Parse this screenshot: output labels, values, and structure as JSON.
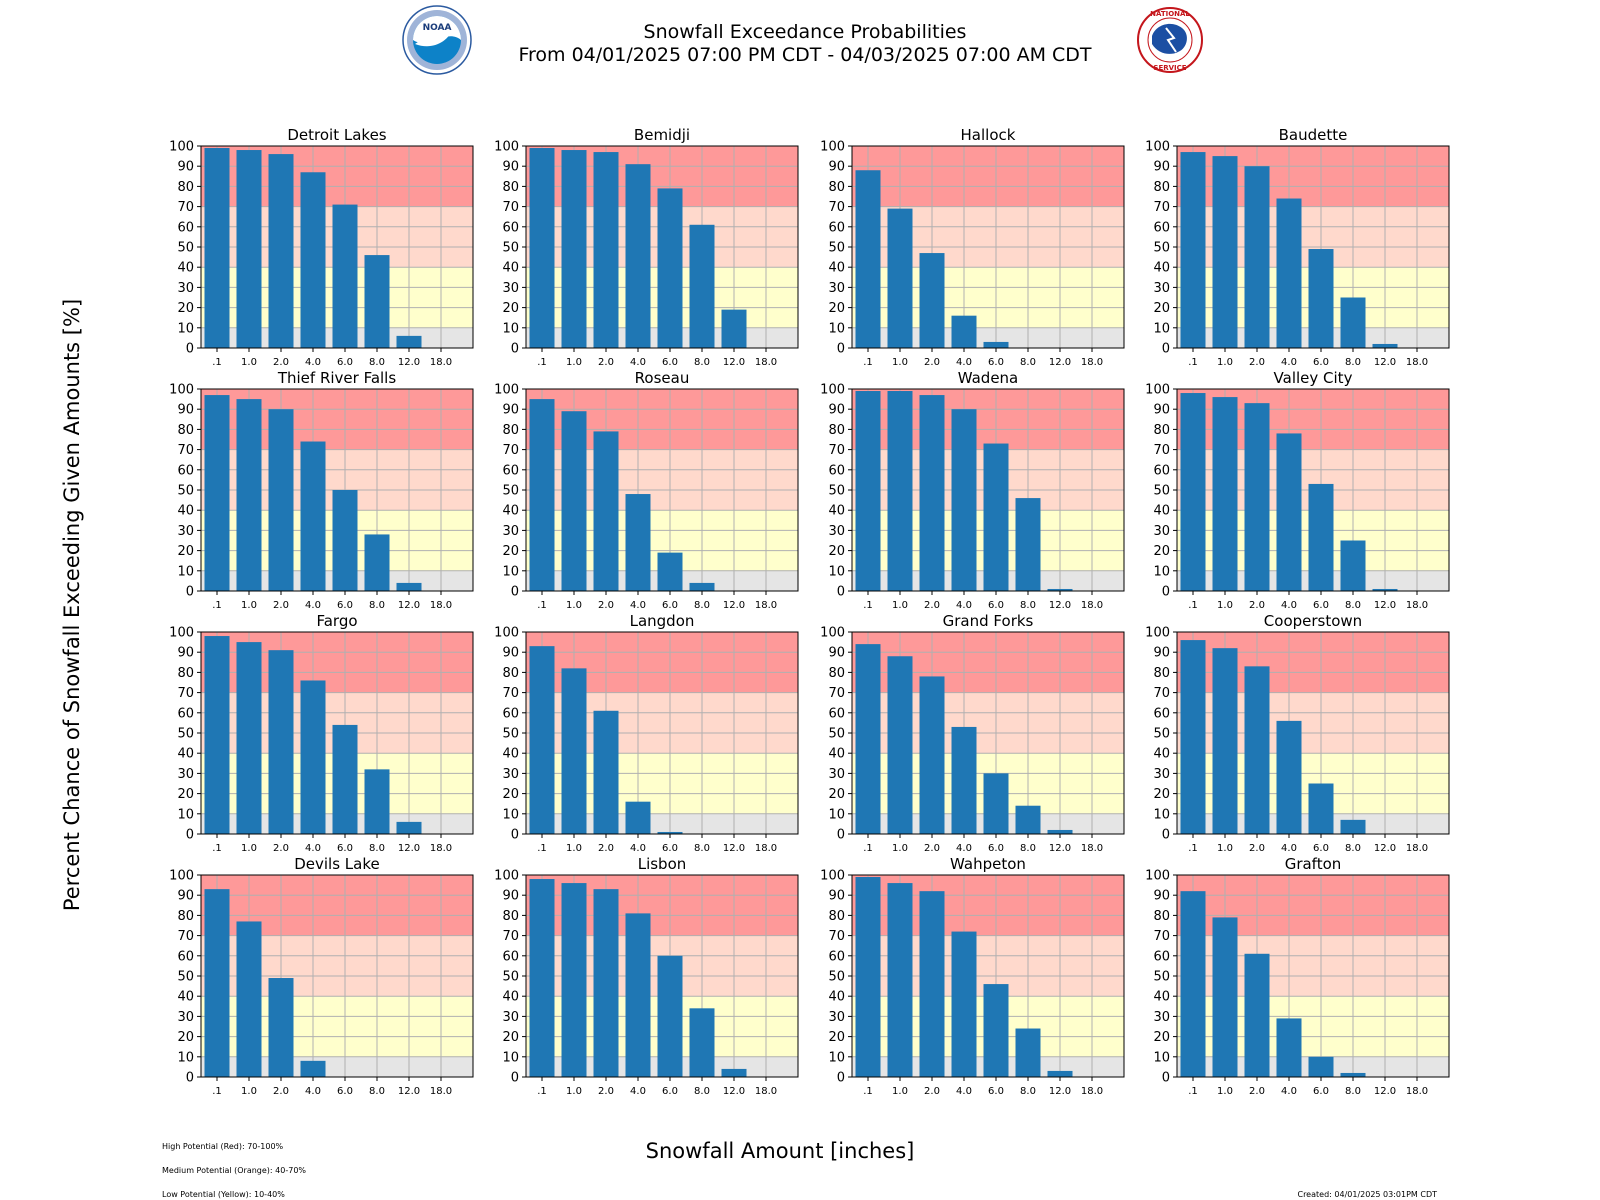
{
  "header": {
    "title_line1": "Snowfall Exceedance Probabilities",
    "title_line2": "From 04/01/2025 07:00 PM CDT - 04/03/2025 07:00 AM CDT",
    "left_logo": "noaa-logo",
    "right_logo": "national-weather-service-logo"
  },
  "footer": {
    "legend_lines": [
      "High Potential (Red): 70-100%",
      "Medium Potential (Orange): 40-70%",
      "Low Potential (Yellow): 10-40%"
    ],
    "created": "Created: 04/01/2025 03:01PM CDT"
  },
  "colors": {
    "bar": "#1f77b4",
    "high_band": "#fe9999",
    "medium_band": "#ffd9cc",
    "low_band": "#ffffcc",
    "minimal_band": "#e5e5e5",
    "grid": "#b0b0b0"
  },
  "chart_data": {
    "type": "bar",
    "xlabel": "Snowfall Amount [inches]",
    "ylabel": "Percent Chance of Snowfall Exceeding Given Amounts [%]",
    "categories": [
      ".1",
      "1.0",
      "2.0",
      "4.0",
      "6.0",
      "8.0",
      "12.0",
      "18.0"
    ],
    "ylim": [
      0,
      100
    ],
    "yticks": [
      0,
      10,
      20,
      30,
      40,
      50,
      60,
      70,
      80,
      90,
      100
    ],
    "grid": true,
    "bands": [
      {
        "from": 70,
        "to": 100,
        "color": "#fe9999"
      },
      {
        "from": 40,
        "to": 70,
        "color": "#ffd9cc"
      },
      {
        "from": 10,
        "to": 40,
        "color": "#ffffcc"
      },
      {
        "from": 0,
        "to": 10,
        "color": "#e5e5e5"
      }
    ],
    "panels": [
      {
        "title": "Detroit Lakes",
        "values": [
          99,
          98,
          96,
          87,
          71,
          46,
          6,
          0
        ]
      },
      {
        "title": "Bemidji",
        "values": [
          99,
          98,
          97,
          91,
          79,
          61,
          19,
          0
        ]
      },
      {
        "title": "Hallock",
        "values": [
          88,
          69,
          47,
          16,
          3,
          0,
          0,
          0
        ]
      },
      {
        "title": "Baudette",
        "values": [
          97,
          95,
          90,
          74,
          49,
          25,
          2,
          0
        ]
      },
      {
        "title": "Thief River Falls",
        "values": [
          97,
          95,
          90,
          74,
          50,
          28,
          4,
          0
        ]
      },
      {
        "title": "Roseau",
        "values": [
          95,
          89,
          79,
          48,
          19,
          4,
          0,
          0
        ]
      },
      {
        "title": "Wadena",
        "values": [
          99,
          99,
          97,
          90,
          73,
          46,
          1,
          0
        ]
      },
      {
        "title": "Valley City",
        "values": [
          98,
          96,
          93,
          78,
          53,
          25,
          1,
          0
        ]
      },
      {
        "title": "Fargo",
        "values": [
          98,
          95,
          91,
          76,
          54,
          32,
          6,
          0
        ]
      },
      {
        "title": "Langdon",
        "values": [
          93,
          82,
          61,
          16,
          1,
          0,
          0,
          0
        ]
      },
      {
        "title": "Grand Forks",
        "values": [
          94,
          88,
          78,
          53,
          30,
          14,
          2,
          0
        ]
      },
      {
        "title": "Cooperstown",
        "values": [
          96,
          92,
          83,
          56,
          25,
          7,
          0,
          0
        ]
      },
      {
        "title": "Devils Lake",
        "values": [
          93,
          77,
          49,
          8,
          0,
          0,
          0,
          0
        ]
      },
      {
        "title": "Lisbon",
        "values": [
          98,
          96,
          93,
          81,
          60,
          34,
          4,
          0
        ]
      },
      {
        "title": "Wahpeton",
        "values": [
          99,
          96,
          92,
          72,
          46,
          24,
          3,
          0
        ]
      },
      {
        "title": "Grafton",
        "values": [
          92,
          79,
          61,
          29,
          10,
          2,
          0,
          0
        ]
      }
    ]
  }
}
